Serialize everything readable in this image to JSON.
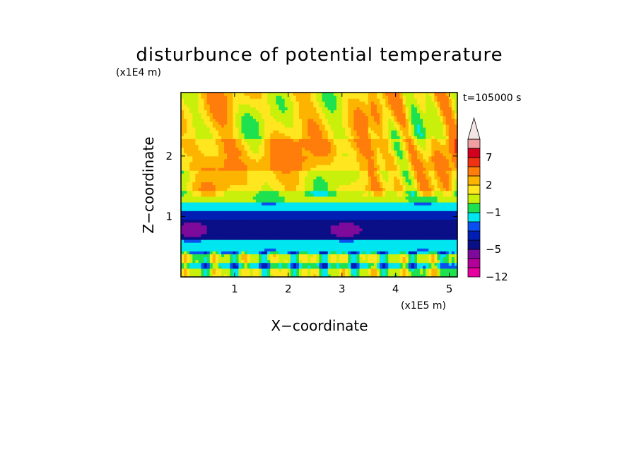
{
  "chart_data": {
    "type": "heatmap",
    "title": "disturbunce of potential temperature",
    "xlabel": "X−coordinate",
    "ylabel": "Z−coordinate",
    "x_unit": "(x1E5 m)",
    "y_unit": "(x1E4 m)",
    "time_label": "t=105000 s",
    "xlim": [
      0,
      5.15
    ],
    "ylim": [
      0,
      3.05
    ],
    "x_ticks": [
      "1",
      "2",
      "3",
      "4",
      "5"
    ],
    "y_ticks": [
      "1",
      "2"
    ],
    "x_tick_values": [
      1,
      2,
      3,
      4,
      5
    ],
    "y_tick_values": [
      1,
      2
    ],
    "colorbar": {
      "levels": [
        -12,
        -9,
        -7,
        -5,
        -4,
        -3,
        -2,
        -1,
        0,
        1,
        2,
        3,
        5,
        7,
        9,
        12
      ],
      "tick_labels": [
        "7",
        "2",
        "−1",
        "−5",
        "−12"
      ],
      "colors": [
        "#e600a0",
        "#b4009b",
        "#7d0a9b",
        "#0a0f87",
        "#001eb4",
        "#0a50f0",
        "#00e6f0",
        "#1ee150",
        "#c8f00a",
        "#ffe61e",
        "#fdb400",
        "#ff7d0a",
        "#f03214",
        "#d2001e",
        "#f0a0a0",
        "#f5e6e6"
      ],
      "extend": "max"
    },
    "bands": [
      {
        "z_from": 0.0,
        "z_to": 0.12,
        "value": 0.5
      },
      {
        "z_from": 0.12,
        "z_to": 0.22,
        "value": -1.5
      },
      {
        "z_from": 0.22,
        "z_to": 0.4,
        "value": 0.4
      },
      {
        "z_from": 0.4,
        "z_to": 0.62,
        "value": -1.8
      },
      {
        "z_from": 0.62,
        "z_to": 0.95,
        "value": -4.6
      },
      {
        "z_from": 0.95,
        "z_to": 1.1,
        "value": -3.4
      },
      {
        "z_from": 1.1,
        "z_to": 1.25,
        "value": -1.6
      },
      {
        "z_from": 1.25,
        "z_to": 1.45,
        "value": 0.4
      },
      {
        "z_from": 1.45,
        "z_to": 1.75,
        "value": 1.5
      },
      {
        "z_from": 1.75,
        "z_to": 2.3,
        "value": 2.6
      },
      {
        "z_from": 2.3,
        "z_to": 3.05,
        "value": 1.6
      }
    ]
  }
}
